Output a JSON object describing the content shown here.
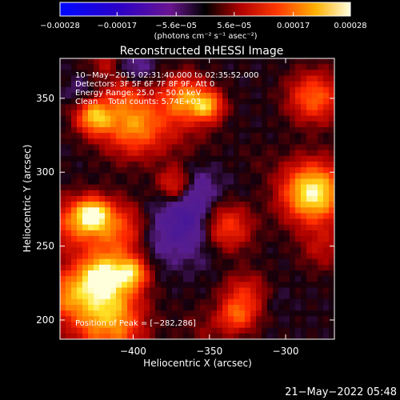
{
  "chart_data": {
    "type": "heatmap",
    "title": "Reconstructed RHESSI Image",
    "xlabel": "Heliocentric X (arcsec)",
    "ylabel": "Heliocentric Y (arcsec)",
    "xlim": [
      -448,
      -268
    ],
    "ylim": [
      187,
      377
    ],
    "x_ticks": [
      {
        "value": -400,
        "label": "−400"
      },
      {
        "value": -350,
        "label": "−350"
      },
      {
        "value": -300,
        "label": "−300"
      }
    ],
    "y_ticks": [
      {
        "value": 200,
        "label": "200"
      },
      {
        "value": 250,
        "label": "250"
      },
      {
        "value": 300,
        "label": "300"
      },
      {
        "value": 350,
        "label": "350"
      }
    ],
    "colorbar": {
      "range": [
        -0.00028,
        0.00028
      ],
      "unit_label": "(photons cm⁻² s⁻¹ asec⁻²)",
      "ticks": [
        {
          "value": -0.00028,
          "label": "−0.00028"
        },
        {
          "value": -0.00017,
          "label": "−0.00017"
        },
        {
          "value": -5.6e-05,
          "label": "−5.6e−05"
        },
        {
          "value": 5.6e-05,
          "label": "5.6e−05"
        },
        {
          "value": 0.00017,
          "label": "0.00017"
        },
        {
          "value": 0.00028,
          "label": "0.00028"
        }
      ]
    },
    "annotations": [
      "10−May−2015 02:31:40.000 to 02:35:52.000",
      "Detectors: 3F 5F 6F 7F 8F 9F, Att 0",
      "Energy Range: 25.0 − 50.0 keV",
      "Clean    Total counts: 5.74E+03"
    ],
    "peak_label": "Position of Peak = [−282,286]",
    "peaks": [
      {
        "x": -282,
        "y": 286,
        "value": 0.00028
      },
      {
        "x": -418,
        "y": 228,
        "value": 0.00024
      }
    ],
    "grid": false
  },
  "footer": {
    "timestamp": "21−May−2022 05:48"
  }
}
